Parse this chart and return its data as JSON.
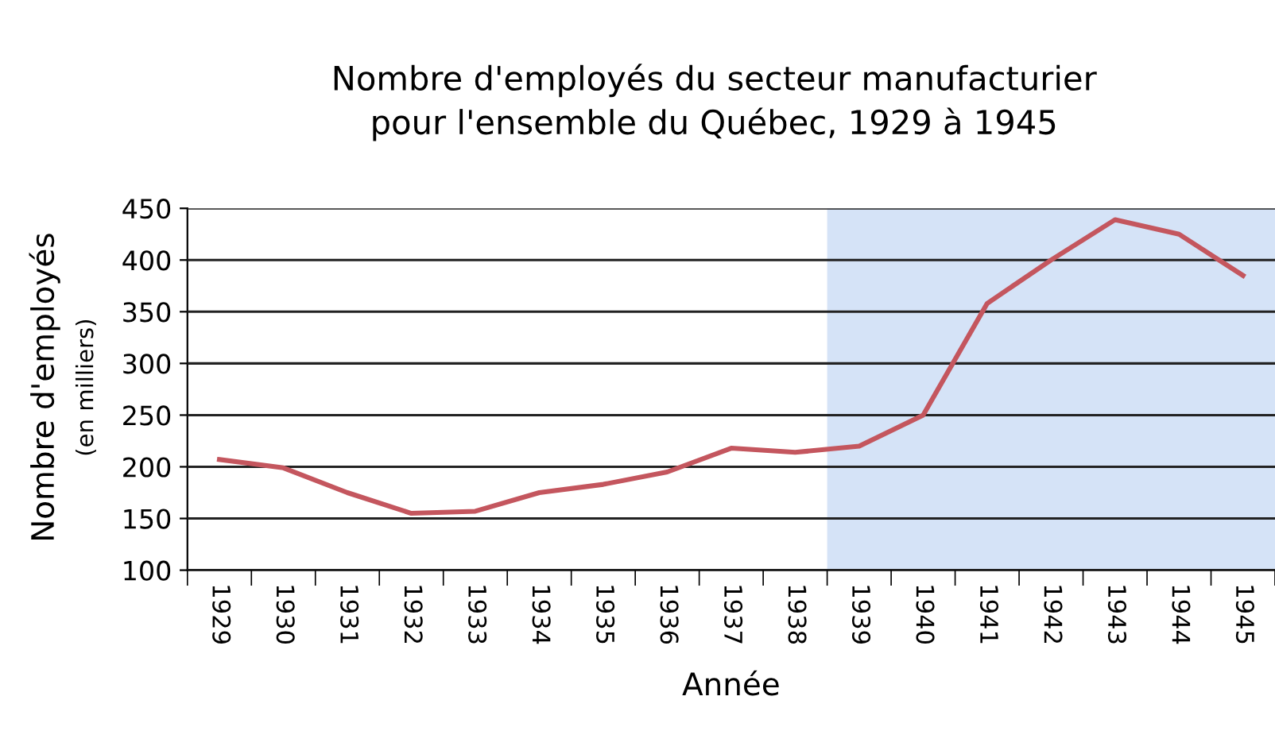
{
  "chart_data": {
    "type": "line",
    "title": "Nombre d'employés du secteur manufacturier\npour l'ensemble du Québec, 1929 à 1945",
    "xlabel": "Année",
    "ylabel": "Nombre d'employés",
    "subtitle": "(en milliers)",
    "categories": [
      "1929",
      "1930",
      "1931",
      "1932",
      "1933",
      "1934",
      "1935",
      "1936",
      "1937",
      "1938",
      "1939",
      "1940",
      "1941",
      "1942",
      "1943",
      "1944",
      "1945"
    ],
    "series": [
      {
        "color": "#c4565e",
        "values": [
          207,
          199,
          175,
          155,
          157,
          175,
          183,
          195,
          218,
          214,
          220,
          250,
          358,
          400,
          439,
          425,
          385
        ]
      }
    ],
    "ylim": [
      100,
      450
    ],
    "yticks": [
      100,
      150,
      200,
      250,
      300,
      350,
      400,
      450
    ],
    "grid": "y",
    "bands": [
      {
        "axis": "x",
        "from": "1939",
        "to": "1945",
        "color": "#d5e3f7"
      }
    ]
  }
}
